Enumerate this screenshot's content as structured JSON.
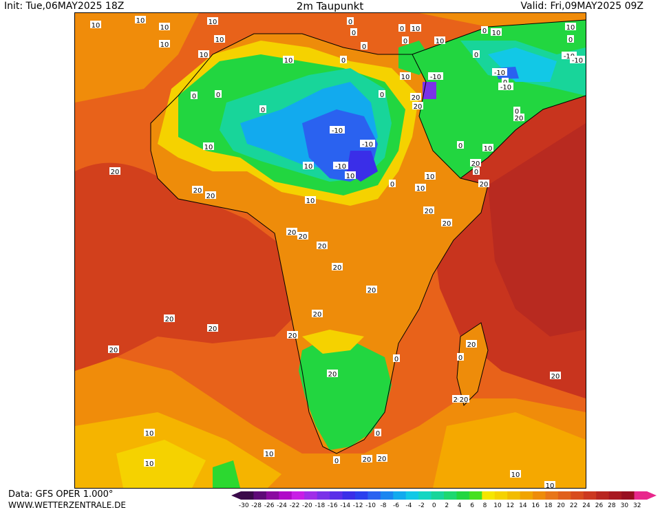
{
  "header": {
    "init": "Init: Tue,06MAY2025 18Z",
    "title": "2m Taupunkt",
    "valid": "Valid: Fri,09MAY2025 09Z"
  },
  "footer": {
    "source": "Data: GFS OPER 1.000°",
    "site": "WWW.WETTERZENTRALE.DE"
  },
  "colors": {
    "ocean_warm": "#d2401c",
    "ocean_mid": "#e8621a",
    "orange": "#f08c0a",
    "yellow": "#f5d200",
    "green": "#23d630",
    "teal": "#18d59a",
    "cyan": "#12c8e6",
    "blue": "#3a6ef0",
    "deep_blue": "#2a2ee8",
    "dark_red": "#b01f20"
  },
  "legend": {
    "ticks": [
      "-30",
      "-28",
      "-26",
      "-24",
      "-22",
      "-20",
      "-18",
      "-16",
      "-14",
      "-12",
      "-10",
      "-8",
      "-6",
      "-4",
      "-2",
      "0",
      "2",
      "4",
      "6",
      "8",
      "10",
      "12",
      "14",
      "16",
      "18",
      "20",
      "22",
      "24",
      "26",
      "28",
      "30",
      "32"
    ],
    "colors": [
      "#3a0a4a",
      "#5e0a78",
      "#8a0aa0",
      "#b00ac8",
      "#c81ee6",
      "#a02ee8",
      "#7a32e8",
      "#5a2ee8",
      "#3a2ee8",
      "#2a40ee",
      "#2a62f0",
      "#1a86f0",
      "#12aaee",
      "#12c8e6",
      "#14d6c2",
      "#18d59a",
      "#1ed870",
      "#22d640",
      "#46e020",
      "#f5e600",
      "#f5d200",
      "#f2bc00",
      "#f0a400",
      "#ee8c0a",
      "#e8761a",
      "#e0601c",
      "#d84c1e",
      "#cc3820",
      "#b82620",
      "#a81820",
      "#980e20",
      "#e8288c"
    ]
  },
  "map_labels": [
    {
      "t": "10"
    },
    {
      "t": "10"
    },
    {
      "t": "10"
    },
    {
      "t": "10"
    },
    {
      "t": "10"
    },
    {
      "t": "10"
    },
    {
      "t": "0"
    },
    {
      "t": "0"
    },
    {
      "t": "0"
    },
    {
      "t": "0"
    },
    {
      "t": "0"
    },
    {
      "t": "10"
    },
    {
      "t": "10"
    },
    {
      "t": "0"
    },
    {
      "t": "10"
    },
    {
      "t": "10"
    },
    {
      "t": "0"
    },
    {
      "t": "0"
    },
    {
      "t": "10"
    },
    {
      "t": "10"
    },
    {
      "t": "10"
    },
    {
      "t": "0"
    },
    {
      "t": "-10"
    },
    {
      "t": "-10"
    },
    {
      "t": "-10"
    },
    {
      "t": "-10"
    },
    {
      "t": "-10"
    },
    {
      "t": "0"
    },
    {
      "t": "-10"
    },
    {
      "t": "-10"
    },
    {
      "t": "-10"
    },
    {
      "t": "0"
    },
    {
      "t": "20"
    },
    {
      "t": "0"
    },
    {
      "t": "20"
    },
    {
      "t": "0"
    },
    {
      "t": "0"
    },
    {
      "t": "10"
    },
    {
      "t": "20"
    },
    {
      "t": "0"
    },
    {
      "t": "10"
    },
    {
      "t": "0"
    },
    {
      "t": "0"
    },
    {
      "t": "10"
    },
    {
      "t": "0"
    },
    {
      "t": "20"
    },
    {
      "t": "10"
    },
    {
      "t": "20"
    },
    {
      "t": "20"
    },
    {
      "t": "20"
    },
    {
      "t": "20"
    },
    {
      "t": "10"
    },
    {
      "t": "10"
    },
    {
      "t": "20"
    },
    {
      "t": "20"
    },
    {
      "t": "20"
    },
    {
      "t": "20"
    },
    {
      "t": "20"
    },
    {
      "t": "20"
    },
    {
      "t": "20"
    },
    {
      "t": "20"
    },
    {
      "t": "20"
    },
    {
      "t": "20"
    },
    {
      "t": "20"
    },
    {
      "t": "20"
    },
    {
      "t": "20"
    },
    {
      "t": "0"
    },
    {
      "t": "0"
    },
    {
      "t": "20"
    },
    {
      "t": "20"
    },
    {
      "t": "20"
    },
    {
      "t": "20"
    },
    {
      "t": "0"
    },
    {
      "t": "20"
    },
    {
      "t": "20"
    },
    {
      "t": "10"
    },
    {
      "t": "10"
    },
    {
      "t": "10"
    },
    {
      "t": "10"
    },
    {
      "t": "10"
    },
    {
      "t": "0"
    },
    {
      "t": "10"
    }
  ]
}
